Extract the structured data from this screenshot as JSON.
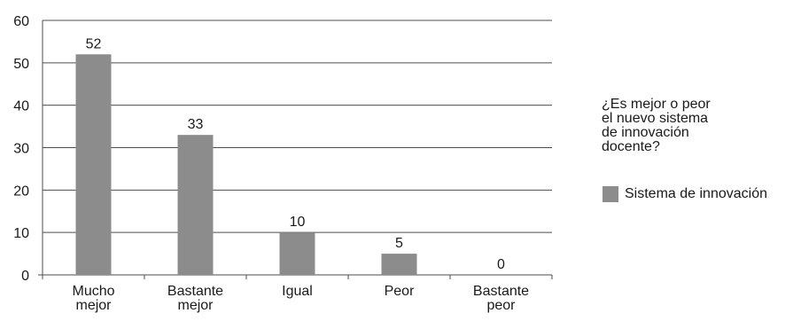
{
  "chart_data": {
    "type": "bar",
    "categories": [
      [
        "Mucho",
        "mejor"
      ],
      [
        "Bastante",
        "mejor"
      ],
      [
        "Igual"
      ],
      [
        "Peor"
      ],
      [
        "Bastante",
        "peor"
      ]
    ],
    "series": [
      {
        "name": "Sistema de innovación",
        "values": [
          52,
          33,
          10,
          5,
          0
        ],
        "color": "#8c8c8c"
      }
    ],
    "data_labels": [
      "52",
      "33",
      "10",
      "5",
      "0"
    ],
    "ylim": [
      0,
      60
    ],
    "yticks": [
      0,
      10,
      20,
      30,
      40,
      50,
      60
    ],
    "grid": true,
    "legend": {
      "title_lines": [
        "¿Es mejor o peor",
        "el nuevo sistema",
        "de innovación",
        "docente?"
      ],
      "placement": "right"
    }
  }
}
